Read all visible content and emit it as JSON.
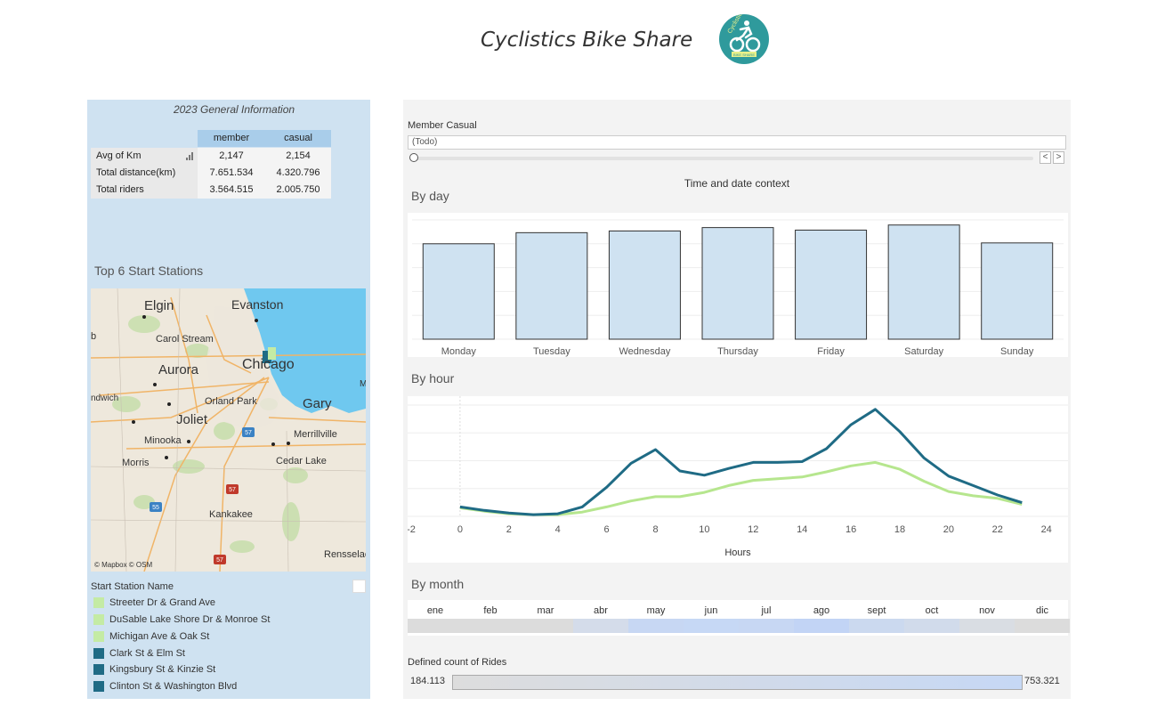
{
  "header": {
    "title": "Cyclistics Bike Share",
    "logo_text": "Cyclistic",
    "logo_subtext": "BIKE SHARE",
    "logo_icon": "cyclist-icon"
  },
  "general_info": {
    "title": "2023 General Information",
    "columns": [
      "member",
      "casual"
    ],
    "rows": [
      {
        "label": "Avg of Km",
        "member": "2,147",
        "casual": "2,154"
      },
      {
        "label": "Total distance(km)",
        "member": "7.651.534",
        "casual": "4.320.796"
      },
      {
        "label": "Total riders",
        "member": "3.564.515",
        "casual": "2.005.750"
      }
    ]
  },
  "stations": {
    "title": "Top 6 Start Stations",
    "map_attribution": "© Mapbox © OSM",
    "map_labels": [
      {
        "text": "Elgin",
        "size": "big"
      },
      {
        "text": "Evanston",
        "size": "big"
      },
      {
        "text": "Carol Stream",
        "size": "small"
      },
      {
        "text": "Aurora",
        "size": "big"
      },
      {
        "text": "Chicago",
        "size": "huge"
      },
      {
        "text": "ndwich",
        "size": "small"
      },
      {
        "text": "Orland Park",
        "size": "small"
      },
      {
        "text": "Gary",
        "size": "big"
      },
      {
        "text": "Joliet",
        "size": "big"
      },
      {
        "text": "Minooka",
        "size": "small"
      },
      {
        "text": "Merrillville",
        "size": "small"
      },
      {
        "text": "Morris",
        "size": "small"
      },
      {
        "text": "Cedar Lake",
        "size": "small"
      },
      {
        "text": "Kankakee",
        "size": "small"
      },
      {
        "text": "Rensselae",
        "size": "small"
      },
      {
        "text": "b",
        "size": "small"
      },
      {
        "text": "M",
        "size": "small"
      }
    ],
    "highway_shields": [
      "57",
      "57",
      "57",
      "55"
    ],
    "legend_title": "Start Station Name",
    "legend": [
      {
        "name": "Streeter Dr & Grand Ave",
        "color": "#c4eba4"
      },
      {
        "name": "DuSable Lake Shore Dr & Monroe St",
        "color": "#c4eba4"
      },
      {
        "name": "Michigan Ave & Oak St",
        "color": "#c4eba4"
      },
      {
        "name": "Clark St & Elm St",
        "color": "#1f6b85"
      },
      {
        "name": "Kingsbury St & Kinzie St",
        "color": "#1f6b85"
      },
      {
        "name": "Clinton St & Washington Blvd",
        "color": "#1f6b85"
      }
    ]
  },
  "filters": {
    "label": "Member Casual",
    "value": "(Todo)",
    "prev_label": "<",
    "next_label": ">"
  },
  "context_label": "Time and date context",
  "charts": {
    "by_day_title": "By day",
    "by_hour_title": "By hour",
    "by_month_title": "By month"
  },
  "months": [
    "ene",
    "feb",
    "mar",
    "abr",
    "may",
    "jun",
    "jul",
    "ago",
    "sept",
    "oct",
    "nov",
    "dic"
  ],
  "month_colors": [
    "#dcdcdc",
    "#dcdcdc",
    "#dcdcdc",
    "#d4dcea",
    "#c7d7f3",
    "#c6d8f5",
    "#c7d7f3",
    "#c2d4f5",
    "#cbd9ef",
    "#d1dbeb",
    "#d9dde3",
    "#dcdcdc"
  ],
  "count_legend": {
    "label": "Defined count of Rides",
    "min": "184.113",
    "max": "753.321"
  },
  "chart_data": [
    {
      "type": "bar",
      "title": "By day",
      "categories": [
        "Monday",
        "Tuesday",
        "Wednesday",
        "Thursday",
        "Friday",
        "Saturday",
        "Sunday"
      ],
      "values": [
        112,
        125,
        127,
        131,
        128,
        134,
        113
      ],
      "ylim": [
        0,
        140
      ],
      "grid": true,
      "color": "#cfe2f1"
    },
    {
      "type": "line",
      "title": "By hour",
      "xlabel": "Hours",
      "xlim": [
        -2,
        25
      ],
      "xticks": [
        -2,
        0,
        2,
        4,
        6,
        8,
        10,
        12,
        14,
        16,
        18,
        20,
        22,
        24
      ],
      "ylim": [
        0,
        130
      ],
      "grid": true,
      "x": [
        0,
        1,
        2,
        3,
        4,
        5,
        6,
        7,
        8,
        9,
        10,
        11,
        12,
        13,
        14,
        15,
        16,
        17,
        18,
        19,
        20,
        21,
        22,
        23
      ],
      "series": [
        {
          "color": "#1f6b85",
          "values": [
            11,
            7,
            4,
            2,
            3,
            11,
            34,
            62,
            78,
            53,
            48,
            56,
            63,
            63,
            64,
            79,
            107,
            125,
            99,
            68,
            47,
            36,
            25,
            16
          ]
        },
        {
          "color": "#b6e68e",
          "values": [
            10,
            6,
            3,
            2,
            2,
            5,
            11,
            18,
            23,
            23,
            28,
            36,
            42,
            44,
            46,
            52,
            59,
            63,
            55,
            41,
            29,
            24,
            21,
            14
          ]
        }
      ]
    }
  ]
}
